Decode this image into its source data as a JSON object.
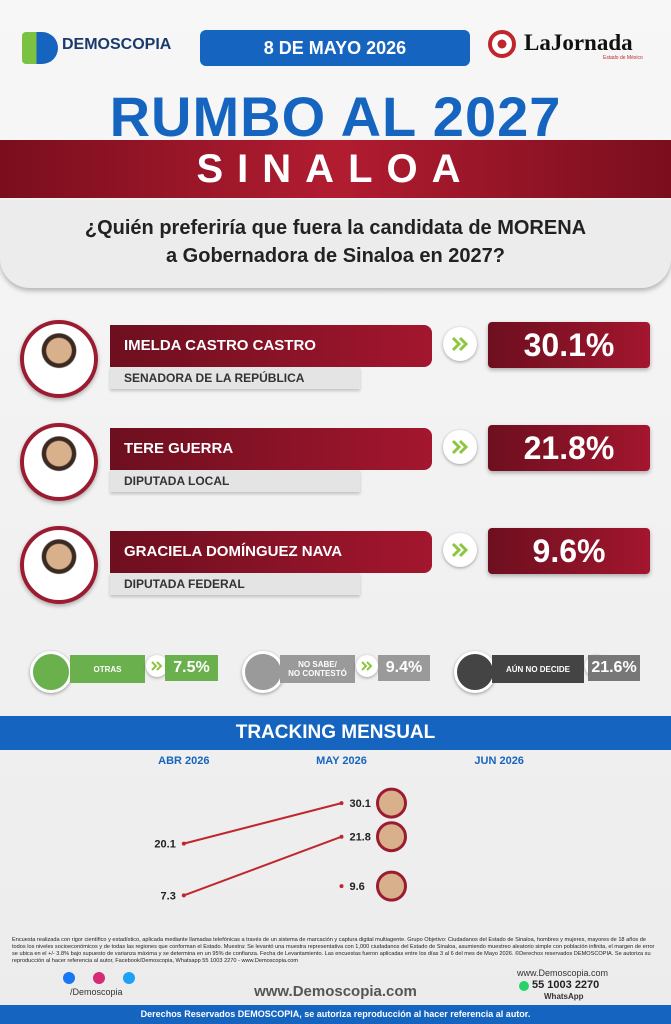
{
  "header": {
    "logo": "DEMOSCOPIA",
    "date": "8 DE MAYO 2026",
    "partner": "LaJornada",
    "partner_sub": "Estado de México"
  },
  "title": "RUMBO AL 2027",
  "state": "SINALOA",
  "question": [
    "¿Quién preferiría que fuera la candidata de MORENA",
    "a Gobernadora de Sinaloa en 2027?"
  ],
  "candidates": [
    {
      "name": "IMELDA CASTRO CASTRO",
      "role": "SENADORA DE LA REPÚBLICA",
      "percent": "30.1%"
    },
    {
      "name": "TERE GUERRA",
      "role": "DIPUTADA LOCAL",
      "percent": "21.8%"
    },
    {
      "name": "GRACIELA DOMÍNGUEZ NAVA",
      "role": "DIPUTADA FEDERAL",
      "percent": "9.6%"
    }
  ],
  "others": [
    {
      "label": [
        "OTRAS"
      ],
      "percent": "7.5%"
    },
    {
      "label": [
        "NO SABE/",
        "NO CONTESTÓ"
      ],
      "percent": "9.4%"
    },
    {
      "label": [
        "AÚN NO DECIDE"
      ],
      "percent": "21.6%"
    }
  ],
  "tracking_title": "TRACKING MENSUAL",
  "chart_data": {
    "type": "line",
    "categories": [
      "ABR 2026",
      "MAY 2026",
      "JUN 2026"
    ],
    "series": [
      {
        "color": "#c0272d",
        "values": [
          20.1,
          30.1,
          null
        ]
      },
      {
        "color": "#c0272d",
        "values": [
          7.3,
          21.8,
          null
        ]
      },
      {
        "color": "#c0272d",
        "values": [
          null,
          9.6,
          null
        ]
      }
    ],
    "ylim": [
      0,
      40
    ]
  },
  "footer": {
    "methodology": "Encuesta realizada con rigor científico y estadístico, aplicada mediante llamadas telefónicas a través de un sistema de marcación y captura digital multiagente. Grupo Objetivo: Ciudadanos del Estado de Sinaloa, hombres y mujeres, mayores de 18 años de todos los niveles socioeconómicos y de todas las regiones que conforman el Estado. Muestra: Se levantó una muestra representativa con 1,000 ciudadanos del Estado de Sinaloa, asumiendo muestreo aleatorio simple con población infinita, el margen de error se ubica en el +/- 3.8% bajo supuesto de varianza máxima y se determina en un 95% de confianza. Fecha de Levantamiento. Las encuestas fueron aplicadas entre los días 3 al 6 del mes de Mayo 2026. ©Derechos reservados DEMOSCOPIA. Se autoriza su reproducción al hacer referencia al autor, Facebook/Demoscopia, Whatsapp 55 1003 2270 - www.Demoscopia.com",
    "social": "/Demoscopia",
    "website": "www.Demoscopia.com",
    "contact_site": "www.Demoscopia.com",
    "phone": "55 1003 2270",
    "phone_label": "WhatsApp",
    "rights": "Derechos Reservados DEMOSCOPIA, se autoriza reproducción al hacer referencia al autor."
  }
}
